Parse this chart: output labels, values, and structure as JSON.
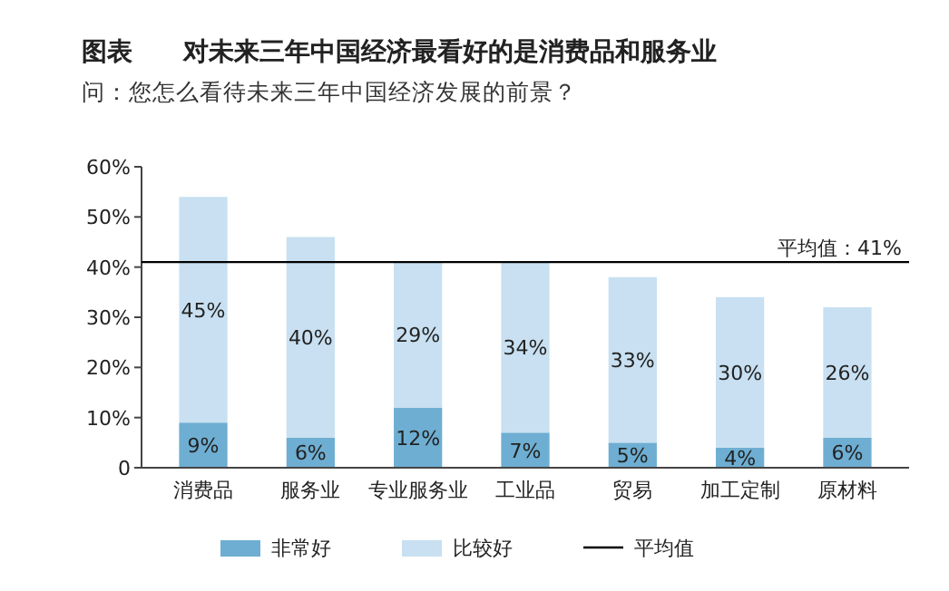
{
  "chart_data": {
    "type": "bar",
    "title": "图表　　对未来三年中国经济最看好的是消费品和服务业",
    "subtitle": "问：您怎么看待未来三年中国经济发展的前景？",
    "categories": [
      "消费品",
      "服务业",
      "专业服务业",
      "工业品",
      "贸易",
      "加工定制",
      "原材料"
    ],
    "series": [
      {
        "name": "非常好",
        "color": "#6eaed2",
        "values": [
          9,
          6,
          12,
          7,
          5,
          4,
          6
        ],
        "value_labels": [
          "9%",
          "6%",
          "12%",
          "7%",
          "5%",
          "4%",
          "6%"
        ]
      },
      {
        "name": "比较好",
        "color": "#c8e0f1",
        "values": [
          45,
          40,
          29,
          34,
          33,
          30,
          26
        ],
        "value_labels": [
          "45%",
          "40%",
          "29%",
          "34%",
          "33%",
          "30%",
          "26%"
        ]
      }
    ],
    "stacked": true,
    "ylim": [
      0,
      60
    ],
    "yticks": [
      {
        "value": 0,
        "label": "0"
      },
      {
        "value": 10,
        "label": "10%"
      },
      {
        "value": 20,
        "label": "20%"
      },
      {
        "value": 30,
        "label": "30%"
      },
      {
        "value": 40,
        "label": "40%"
      },
      {
        "value": 50,
        "label": "50%"
      },
      {
        "value": 60,
        "label": "60%"
      }
    ],
    "ref_lines": [
      {
        "axis": "y",
        "value": 41,
        "label": "平均值：41%",
        "color": "#000000"
      }
    ],
    "annotations": [
      "平均值"
    ],
    "grid": false,
    "legend": "bottom"
  }
}
